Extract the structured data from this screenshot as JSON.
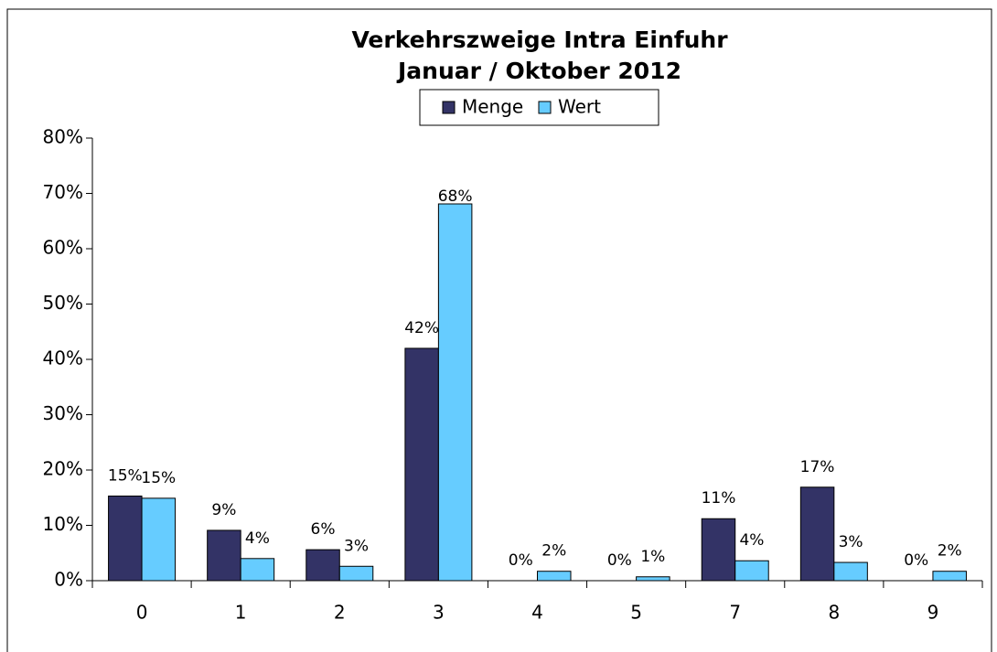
{
  "chart_data": {
    "type": "bar",
    "title": "Verkehrszweige Intra Einfuhr",
    "subtitle": "Januar / Oktober 2012",
    "categories": [
      "0",
      "1",
      "2",
      "3",
      "4",
      "5",
      "7",
      "8",
      "9"
    ],
    "series": [
      {
        "name": "Menge",
        "color": "#333366",
        "values": [
          15.3,
          9.1,
          5.6,
          42.0,
          0,
          0,
          11.2,
          16.9,
          0
        ],
        "value_labels": [
          "15%",
          "9%",
          "6%",
          "42%",
          "0%",
          "0%",
          "11%",
          "17%",
          "0%"
        ]
      },
      {
        "name": "Wert",
        "color": "#66ccff",
        "values": [
          14.9,
          4.0,
          2.6,
          68.1,
          1.7,
          0.7,
          3.6,
          3.3,
          1.7
        ],
        "value_labels": [
          "15%",
          "4%",
          "3%",
          "68%",
          "2%",
          "1%",
          "4%",
          "3%",
          "2%"
        ]
      }
    ],
    "ylim": [
      0,
      80
    ],
    "yticks": [
      {
        "value": 0,
        "label": "0%"
      },
      {
        "value": 10,
        "label": "10%"
      },
      {
        "value": 20,
        "label": "20%"
      },
      {
        "value": 30,
        "label": "30%"
      },
      {
        "value": 40,
        "label": "40%"
      },
      {
        "value": 50,
        "label": "50%"
      },
      {
        "value": 60,
        "label": "60%"
      },
      {
        "value": 70,
        "label": "70%"
      },
      {
        "value": 80,
        "label": "80%"
      }
    ],
    "grid": false,
    "legend": "top"
  }
}
